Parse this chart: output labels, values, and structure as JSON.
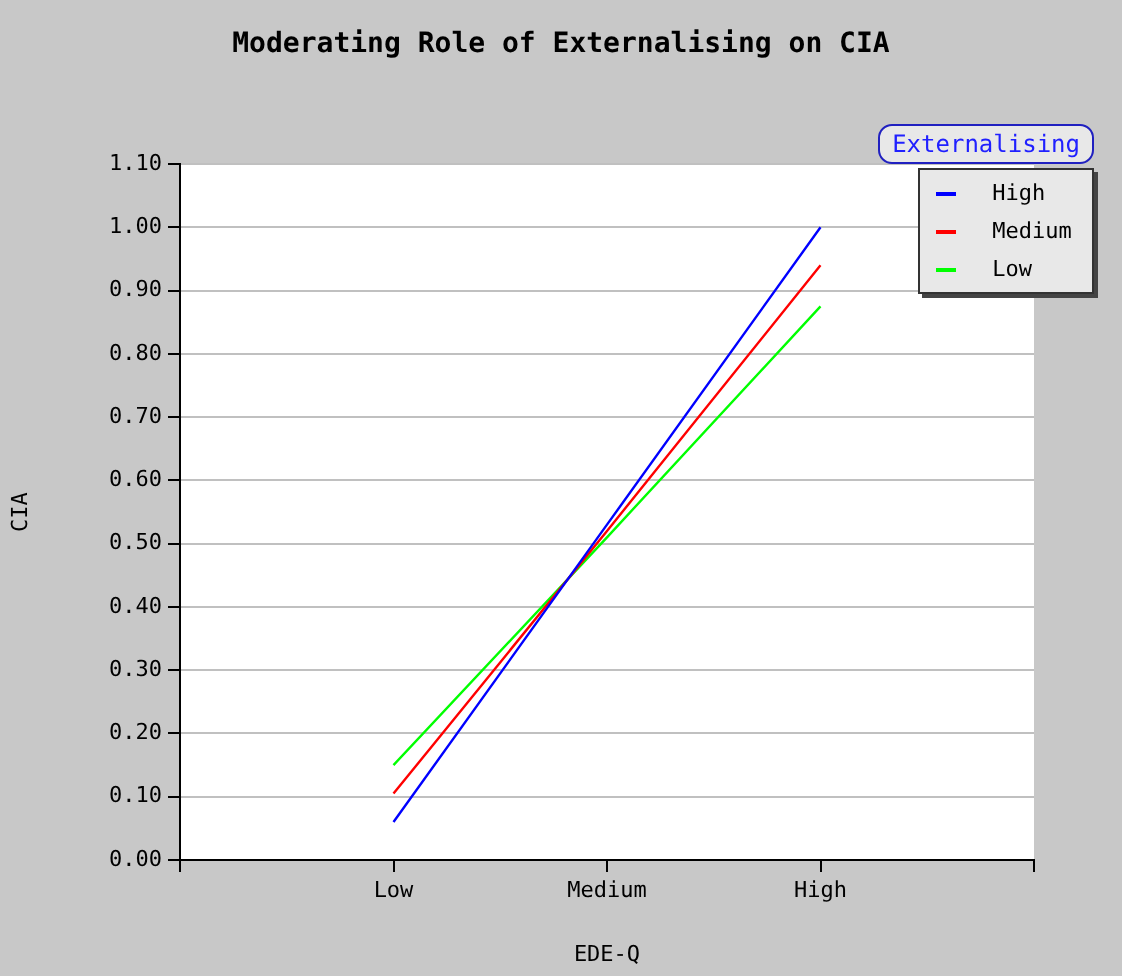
{
  "chart_data": {
    "type": "line",
    "title": "Moderating Role of Externalising on CIA",
    "xlabel": "EDE-Q",
    "ylabel": "CIA",
    "legend_title": "Externalising",
    "legend": "top right",
    "categories": [
      null,
      "Low",
      "Medium",
      "High",
      null
    ],
    "series": [
      {
        "name": "High",
        "color": "#0000ff",
        "values": [
          null,
          0.06,
          0.53,
          1.0,
          null
        ]
      },
      {
        "name": "Medium",
        "color": "#ff0000",
        "values": [
          null,
          0.105,
          0.52,
          0.94,
          null
        ]
      },
      {
        "name": "Low",
        "color": "#00ff00",
        "values": [
          null,
          0.15,
          0.51,
          0.875,
          null
        ]
      }
    ],
    "ylim": [
      0,
      1.1
    ],
    "yticks": [
      {
        "value": 0,
        "label": "0.00"
      },
      {
        "value": 0.1,
        "label": "0.10"
      },
      {
        "value": 0.2,
        "label": "0.20"
      },
      {
        "value": 0.3,
        "label": "0.30"
      },
      {
        "value": 0.4,
        "label": "0.40"
      },
      {
        "value": 0.5,
        "label": "0.50"
      },
      {
        "value": 0.6,
        "label": "0.60"
      },
      {
        "value": 0.7,
        "label": "0.70"
      },
      {
        "value": 0.8,
        "label": "0.80"
      },
      {
        "value": 0.9,
        "label": "0.90"
      },
      {
        "value": 1,
        "label": "1.00"
      },
      {
        "value": 1.1,
        "label": "1.10"
      }
    ],
    "grid": "y",
    "marker": "none",
    "line_style": "solid"
  }
}
